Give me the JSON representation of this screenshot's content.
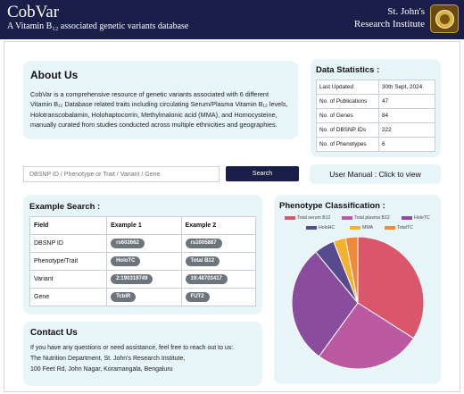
{
  "header": {
    "app_title": "CobVar",
    "tagline": "A Vitamin B₁₂ associated genetic variants database",
    "institute_line1": "St. John's",
    "institute_line2": "Research Institute"
  },
  "about": {
    "title": "About Us",
    "body": "CobVar is a comprehensive resource of genetic variants associated with 6 different Vitamin B₁₂ Database related traits including circulating Serum/Plasma Vitamin B₁₂ levels, Holotranscobalamin, Holohaptocorrin, Methylmalonic acid (MMA), and Homocysteine, manually curated from studies conducted across multiple ethnicities and geographies."
  },
  "stats": {
    "title": "Data Statistics :",
    "rows": [
      {
        "label": "Last Updated",
        "value": "30th Sept, 2024."
      },
      {
        "label": "No. of Publications",
        "value": "47"
      },
      {
        "label": "No. of Genes",
        "value": "84"
      },
      {
        "label": "No. of DBSNP IDs",
        "value": "222"
      },
      {
        "label": "No. of Phenotypes",
        "value": "6"
      }
    ]
  },
  "search": {
    "placeholder": "DBSNP ID / Phenotype or Trait / Variant / Gene",
    "button_label": "Search"
  },
  "manual_label": "User Manual : Click to view",
  "example": {
    "title": "Example Search :",
    "headers": [
      "Field",
      "Example 1",
      "Example 2"
    ],
    "rows": [
      {
        "field": "DBSNP ID",
        "ex1": "rs602662",
        "ex2": "rs1005887"
      },
      {
        "field": "Phenotype/Trait",
        "ex1": "HoloTC",
        "ex2": "Total B12"
      },
      {
        "field": "Variant",
        "ex1": "2:190319749",
        "ex2": "19:48703417"
      },
      {
        "field": "Gene",
        "ex1": "TcblR",
        "ex2": "FUT2"
      }
    ]
  },
  "contact": {
    "title": "Contact Us",
    "line1": "If you have any questions or need assistance, feel free to reach out to us:",
    "line2": "The Nutrition Department, St. John's Research Institute,",
    "line3": "100 Feet Rd, John Nagar, Koramangala, Bengaluru"
  },
  "chart_data": {
    "type": "pie",
    "title": "Phenotype Classification :",
    "legend_position": "top",
    "series": [
      {
        "name": "Total serum B12",
        "value": 34,
        "color": "#d9566b"
      },
      {
        "name": "Total plasma B12",
        "value": 26,
        "color": "#bb5aa3"
      },
      {
        "name": "HoloTC",
        "value": 29,
        "color": "#8a4c9c"
      },
      {
        "name": "HoloHC",
        "value": 5,
        "color": "#574a8e"
      },
      {
        "name": "MMA",
        "value": 3,
        "color": "#f4b130"
      },
      {
        "name": "TotalTC",
        "value": 3,
        "color": "#ee8a3a"
      }
    ]
  }
}
